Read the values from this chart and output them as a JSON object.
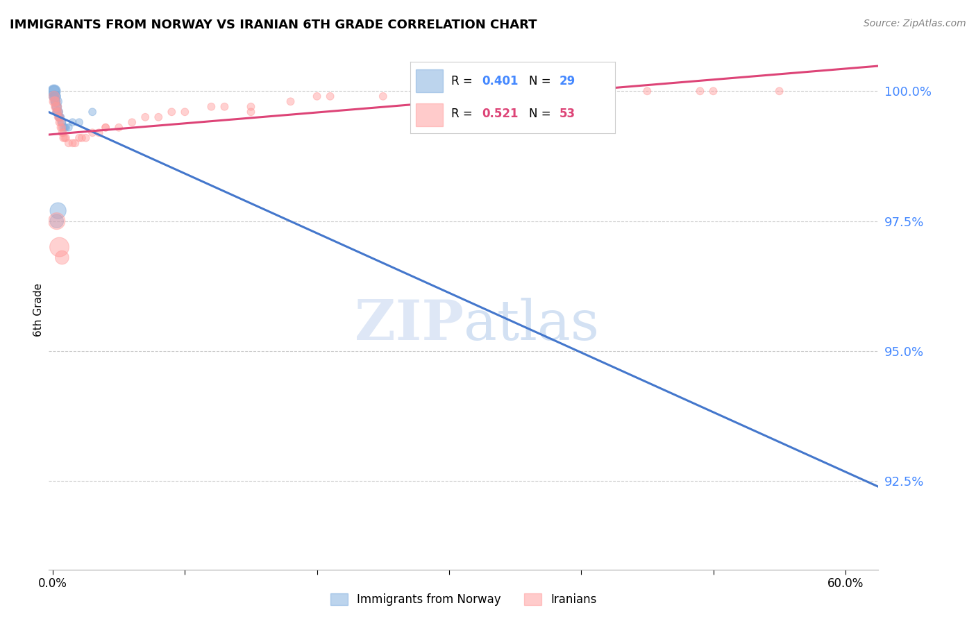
{
  "title": "IMMIGRANTS FROM NORWAY VS IRANIAN 6TH GRADE CORRELATION CHART",
  "source": "Source: ZipAtlas.com",
  "ylabel": "6th Grade",
  "ylabel_ticks": [
    "100.0%",
    "97.5%",
    "95.0%",
    "92.5%"
  ],
  "ylabel_values": [
    1.0,
    0.975,
    0.95,
    0.925
  ],
  "ymin": 0.908,
  "ymax": 1.008,
  "xmin": -0.003,
  "xmax": 0.625,
  "norway_color": "#7aaadd",
  "iranian_color": "#ff9999",
  "norway_line_color": "#4477cc",
  "iranian_line_color": "#dd4477",
  "norway_R": 0.401,
  "norway_N": 29,
  "iranian_R": 0.521,
  "iranian_N": 53,
  "norway_label": "Immigrants from Norway",
  "iranian_label": "Iranians",
  "norway_scatter_x": [
    0.001,
    0.001,
    0.001,
    0.001,
    0.001,
    0.002,
    0.002,
    0.002,
    0.002,
    0.003,
    0.003,
    0.003,
    0.003,
    0.004,
    0.004,
    0.005,
    0.005,
    0.006,
    0.007,
    0.007,
    0.008,
    0.009,
    0.01,
    0.012,
    0.015,
    0.02,
    0.03,
    0.004,
    0.003
  ],
  "norway_scatter_y": [
    1.0,
    1.0,
    1.0,
    0.999,
    0.999,
    0.999,
    0.999,
    0.998,
    0.998,
    0.998,
    0.997,
    0.997,
    0.996,
    0.996,
    0.996,
    0.995,
    0.995,
    0.995,
    0.994,
    0.994,
    0.993,
    0.993,
    0.993,
    0.993,
    0.994,
    0.994,
    0.996,
    0.977,
    0.975
  ],
  "norway_scatter_sizes": [
    180,
    150,
    120,
    120,
    100,
    120,
    100,
    100,
    80,
    120,
    100,
    80,
    70,
    100,
    80,
    80,
    60,
    60,
    60,
    60,
    60,
    60,
    60,
    60,
    60,
    60,
    60,
    280,
    200
  ],
  "iranian_scatter_x": [
    0.001,
    0.001,
    0.002,
    0.002,
    0.003,
    0.003,
    0.004,
    0.004,
    0.005,
    0.005,
    0.006,
    0.006,
    0.007,
    0.007,
    0.008,
    0.008,
    0.009,
    0.01,
    0.012,
    0.015,
    0.017,
    0.02,
    0.022,
    0.025,
    0.03,
    0.035,
    0.04,
    0.05,
    0.06,
    0.07,
    0.08,
    0.1,
    0.12,
    0.15,
    0.18,
    0.2,
    0.25,
    0.3,
    0.35,
    0.4,
    0.45,
    0.5,
    0.55,
    0.003,
    0.005,
    0.007,
    0.15,
    0.38,
    0.49,
    0.21,
    0.13,
    0.09,
    0.04
  ],
  "iranian_scatter_y": [
    0.999,
    0.998,
    0.998,
    0.997,
    0.997,
    0.996,
    0.996,
    0.995,
    0.995,
    0.994,
    0.994,
    0.993,
    0.993,
    0.992,
    0.992,
    0.991,
    0.991,
    0.991,
    0.99,
    0.99,
    0.99,
    0.991,
    0.991,
    0.991,
    0.992,
    0.992,
    0.993,
    0.993,
    0.994,
    0.995,
    0.995,
    0.996,
    0.997,
    0.997,
    0.998,
    0.999,
    0.999,
    1.0,
    1.0,
    1.0,
    1.0,
    1.0,
    1.0,
    0.975,
    0.97,
    0.968,
    0.996,
    0.999,
    1.0,
    0.999,
    0.997,
    0.996,
    0.993
  ],
  "iranian_scatter_sizes": [
    120,
    100,
    100,
    80,
    100,
    80,
    80,
    60,
    80,
    60,
    60,
    60,
    60,
    60,
    60,
    60,
    60,
    60,
    60,
    60,
    60,
    60,
    60,
    60,
    60,
    60,
    60,
    60,
    60,
    60,
    60,
    60,
    60,
    60,
    60,
    60,
    60,
    60,
    60,
    60,
    60,
    60,
    60,
    300,
    400,
    200,
    60,
    60,
    60,
    60,
    60,
    60,
    60
  ]
}
